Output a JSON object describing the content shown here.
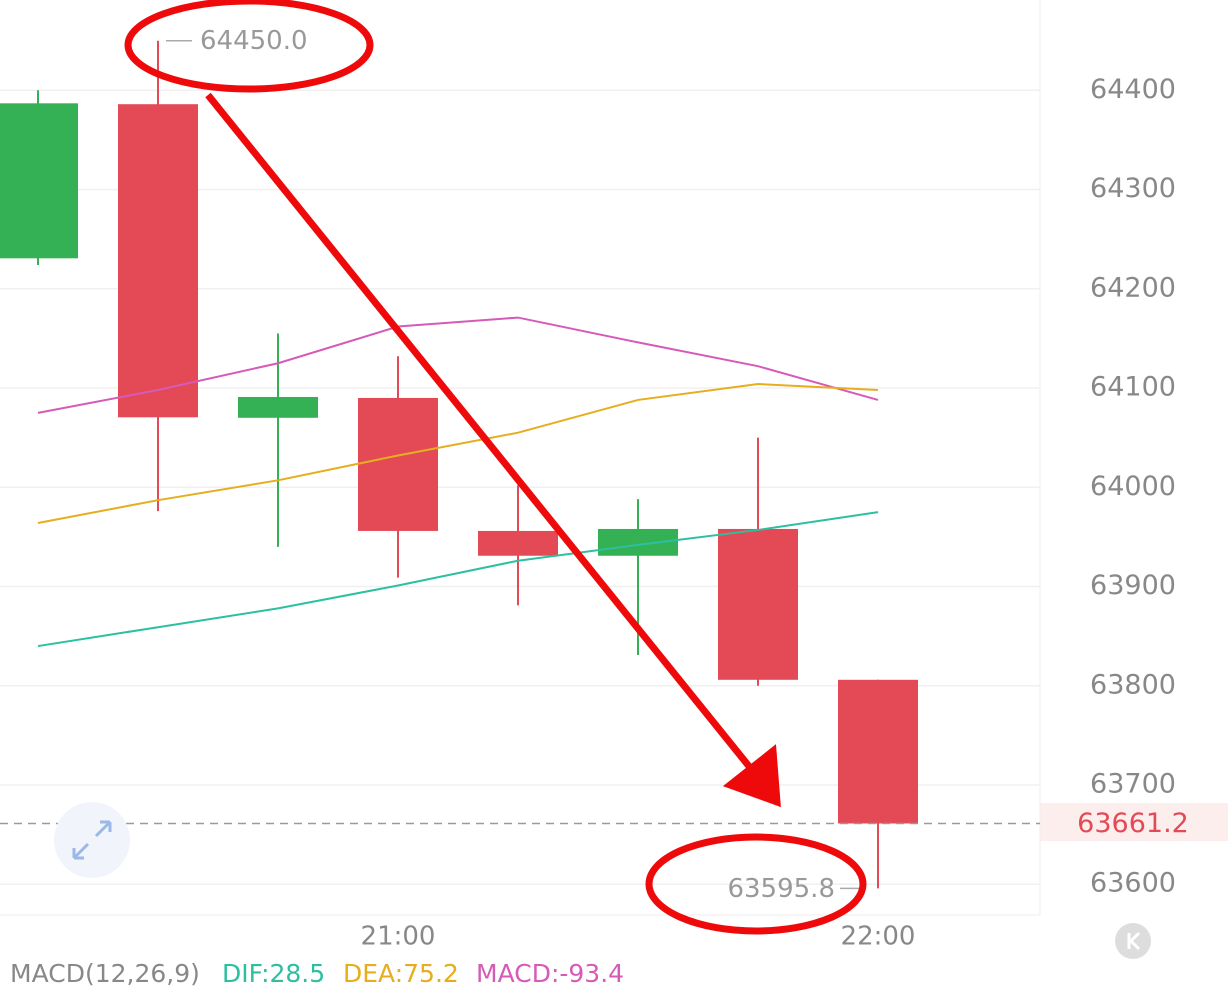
{
  "chart_data": {
    "type": "candlestick",
    "categories": [
      null,
      null,
      null,
      "21:00",
      null,
      null,
      null,
      "22:00"
    ],
    "open": [
      64230.7,
      64386,
      64070,
      64090,
      63956,
      63931,
      63958,
      63806
    ],
    "high": [
      64400,
      64450,
      64155,
      64132,
      64002,
      63988,
      64050,
      63806
    ],
    "low": [
      64224,
      63976,
      63940,
      63909,
      63881,
      63831,
      63800,
      63595.8
    ],
    "close": [
      64386.9,
      64070.5,
      64091,
      63956,
      63931,
      63958,
      63806,
      63661.2
    ],
    "up_color": "#35b155",
    "down_color": "#e34a56",
    "series": [
      {
        "color": "#d65ab8",
        "values": [
          64075,
          64098,
          64125,
          64162,
          64171,
          64146,
          64122,
          64088
        ]
      },
      {
        "color": "#e6ae1e",
        "values": [
          63964,
          63987,
          64007,
          64032,
          64055,
          64088,
          64104,
          64098
        ]
      },
      {
        "color": "#2cc0a0",
        "values": [
          63840,
          63859,
          63878,
          63901,
          63926,
          63942,
          63957,
          63975
        ]
      }
    ],
    "ylim": [
      63569,
      64491
    ],
    "yticks": [
      63600,
      63700,
      63800,
      63900,
      64000,
      64100,
      64200,
      64300,
      64400
    ],
    "grid": true,
    "high_label": {
      "value": 64450,
      "label": "64450.0"
    },
    "low_label": 63595.8,
    "last_price": 63661.2,
    "last_price_color": "#e34a56",
    "macd": {
      "indicator": "MACD(12,26,9)",
      "dif": "DIF:28.5",
      "dea": "DEA:75.2",
      "macd": "MACD:-93.4"
    }
  }
}
